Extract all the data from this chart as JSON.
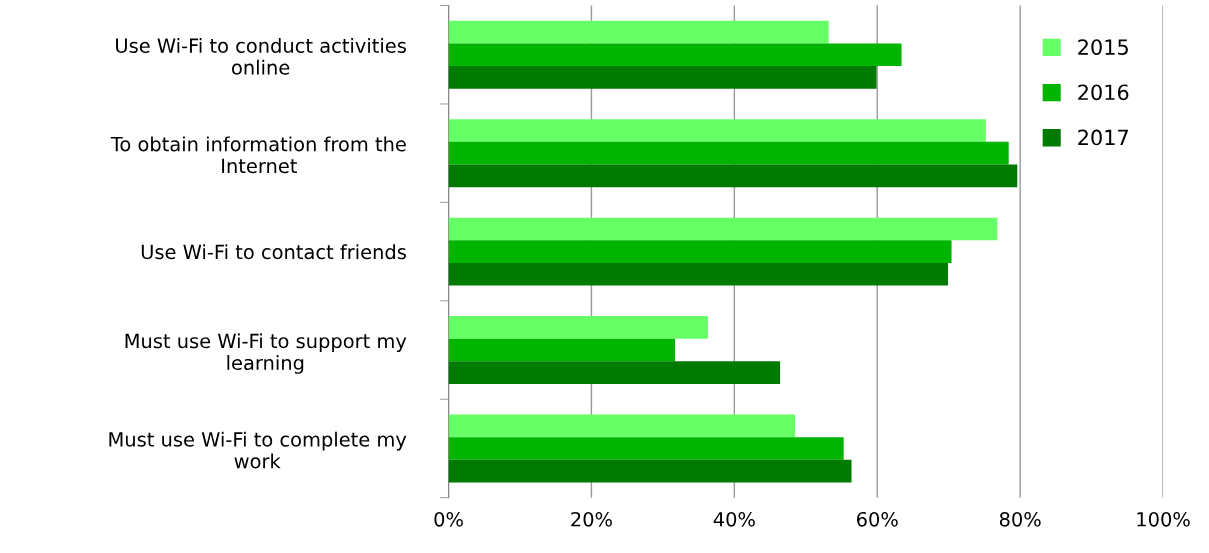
{
  "chart_data": {
    "type": "bar",
    "orientation": "horizontal",
    "categories": [
      "Use Wi-Fi to conduct activities\nonline",
      "To obtain information from the\nInternet",
      "Use Wi-Fi to contact friends",
      "Must use Wi-Fi to support my\nlearning",
      "Must use Wi-Fi to complete my\nwork"
    ],
    "series": [
      {
        "name": "2015",
        "color": "#66ff66",
        "values": [
          53.2,
          75.2,
          76.8,
          36.3,
          48.5
        ]
      },
      {
        "name": "2016",
        "color": "#00b400",
        "values": [
          63.4,
          78.4,
          70.4,
          31.7,
          55.3
        ]
      },
      {
        "name": "2017",
        "color": "#007a00",
        "values": [
          59.9,
          79.6,
          69.9,
          46.4,
          56.4
        ]
      }
    ],
    "xlim": [
      0,
      100
    ],
    "xticks": [
      {
        "value": 0,
        "label": "0%"
      },
      {
        "value": 20,
        "label": "20%"
      },
      {
        "value": 40,
        "label": "40%"
      },
      {
        "value": 60,
        "label": "60%"
      },
      {
        "value": 80,
        "label": "80%"
      },
      {
        "value": 100,
        "label": "100%"
      }
    ],
    "grid": "x",
    "legend": "top right"
  }
}
